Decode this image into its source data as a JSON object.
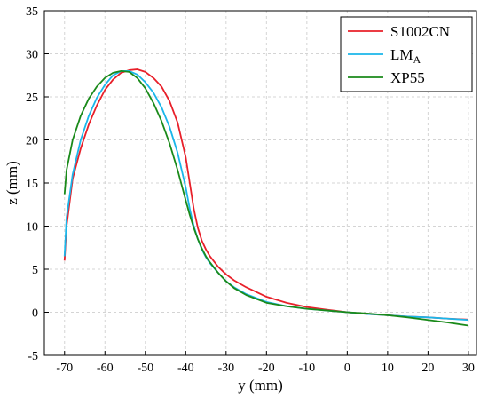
{
  "chart_data": {
    "type": "line",
    "title": "",
    "xlabel": "y (mm)",
    "ylabel": "z (mm)",
    "xlim": [
      -75,
      32
    ],
    "ylim": [
      -5,
      35
    ],
    "xticks": [
      -70,
      -60,
      -50,
      -40,
      -30,
      -20,
      -10,
      0,
      10,
      20,
      30
    ],
    "yticks": [
      -5,
      0,
      5,
      10,
      15,
      20,
      25,
      30,
      35
    ],
    "grid": true,
    "legend_position": "top-right",
    "series": [
      {
        "name": "S1002CN",
        "legend_main": "S1002CN",
        "legend_sub": "",
        "color": "#e8202a",
        "x": [
          -70,
          -69.5,
          -68,
          -66,
          -64,
          -62,
          -60,
          -58,
          -56,
          -54,
          -52,
          -50,
          -48,
          -46,
          -44,
          -42,
          -40,
          -39,
          -38,
          -37,
          -36,
          -35,
          -34,
          -32,
          -30,
          -28,
          -25,
          -20,
          -15,
          -10,
          -5,
          0,
          5,
          10,
          15,
          20,
          25,
          30
        ],
        "y": [
          6.0,
          10.0,
          15.5,
          19.0,
          21.8,
          24.0,
          25.8,
          27.0,
          27.8,
          28.1,
          28.2,
          27.9,
          27.2,
          26.2,
          24.5,
          22.0,
          18.0,
          15.0,
          12.0,
          9.8,
          8.3,
          7.3,
          6.5,
          5.3,
          4.4,
          3.7,
          2.9,
          1.8,
          1.1,
          0.6,
          0.3,
          0.0,
          -0.2,
          -0.35,
          -0.5,
          -0.6,
          -0.75,
          -0.85
        ]
      },
      {
        "name": "LMA",
        "legend_main": "LM",
        "legend_sub": "A",
        "color": "#1ab6ea",
        "x": [
          -70,
          -69.5,
          -68,
          -66,
          -64,
          -62,
          -60,
          -58,
          -56,
          -54,
          -52,
          -50,
          -48,
          -46,
          -44,
          -42,
          -40,
          -39,
          -38,
          -37,
          -36,
          -35,
          -34,
          -32,
          -30,
          -28,
          -25,
          -20,
          -15,
          -10,
          -5,
          0,
          5,
          10,
          15,
          20,
          25,
          30
        ],
        "y": [
          6.5,
          11.0,
          16.0,
          20.0,
          22.8,
          24.9,
          26.4,
          27.5,
          28.0,
          28.0,
          27.6,
          26.7,
          25.5,
          23.8,
          21.5,
          18.5,
          14.5,
          12.0,
          10.0,
          8.5,
          7.3,
          6.4,
          5.7,
          4.6,
          3.6,
          2.9,
          2.1,
          1.2,
          0.7,
          0.4,
          0.2,
          0.0,
          -0.2,
          -0.35,
          -0.5,
          -0.6,
          -0.75,
          -0.9
        ]
      },
      {
        "name": "XP55",
        "legend_main": "XP55",
        "legend_sub": "",
        "color": "#1a8a1a",
        "x": [
          -70,
          -69.5,
          -68,
          -66,
          -64,
          -62,
          -60,
          -58,
          -56,
          -54,
          -52,
          -50,
          -48,
          -46,
          -44,
          -42,
          -40,
          -39,
          -38,
          -37,
          -36,
          -35,
          -34,
          -32,
          -30,
          -28,
          -25,
          -20,
          -15,
          -10,
          -5,
          0,
          5,
          10,
          15,
          20,
          25,
          30
        ],
        "y": [
          13.7,
          16.5,
          20.0,
          22.8,
          24.8,
          26.2,
          27.2,
          27.8,
          28.0,
          27.9,
          27.2,
          26.0,
          24.3,
          22.2,
          19.6,
          16.5,
          13.0,
          11.3,
          9.8,
          8.5,
          7.4,
          6.5,
          5.8,
          4.6,
          3.6,
          2.8,
          2.0,
          1.1,
          0.7,
          0.4,
          0.2,
          0.0,
          -0.15,
          -0.35,
          -0.6,
          -0.9,
          -1.2,
          -1.55
        ]
      }
    ]
  }
}
